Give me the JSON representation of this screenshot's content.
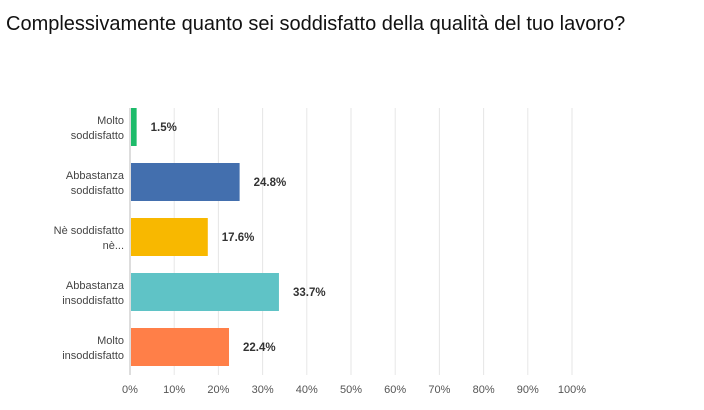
{
  "chart_data": {
    "type": "bar",
    "orientation": "horizontal",
    "title": "Complessivamente quanto sei soddisfatto della qualità del tuo lavoro?",
    "categories": [
      [
        "Molto",
        "soddisfatto"
      ],
      [
        "Abbastanza",
        "soddisfatto"
      ],
      [
        "Nè soddisfatto",
        "nè..."
      ],
      [
        "Abbastanza",
        "insoddisfatto"
      ],
      [
        "Molto",
        "insoddisfatto"
      ]
    ],
    "values": [
      1.5,
      24.8,
      17.6,
      33.7,
      22.4
    ],
    "value_labels": [
      "1.5%",
      "24.8%",
      "17.6%",
      "33.7%",
      "22.4%"
    ],
    "colors": [
      "#1dbb6a",
      "#436fae",
      "#f8b800",
      "#5fc3c6",
      "#ff7f48"
    ],
    "xlim": [
      0,
      100
    ],
    "ticks": [
      0,
      10,
      20,
      30,
      40,
      50,
      60,
      70,
      80,
      90,
      100
    ],
    "tick_labels": [
      "0%",
      "10%",
      "20%",
      "30%",
      "40%",
      "50%",
      "60%",
      "70%",
      "80%",
      "90%",
      "100%"
    ],
    "grid": true,
    "legend": "none"
  }
}
